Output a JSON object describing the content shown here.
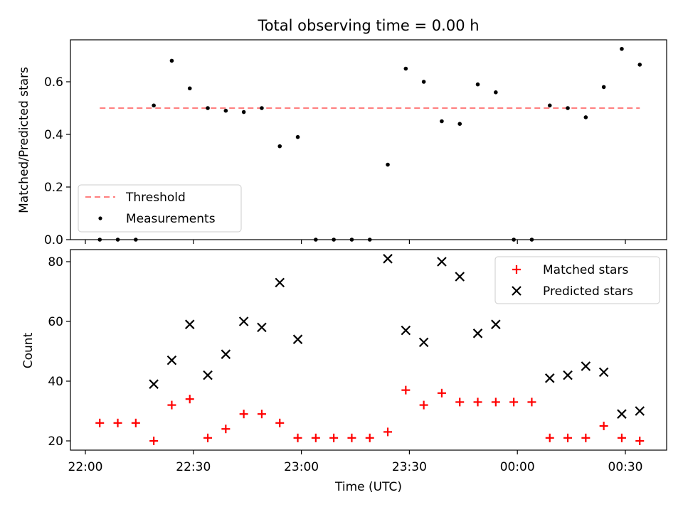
{
  "chart_data": [
    {
      "type": "scatter",
      "title": "Total observing time = 0.00 h",
      "xlabel": "",
      "ylabel": "Matched/Predicted stars",
      "xlim": [
        "21:58",
        "00:41"
      ],
      "ylim": [
        0,
        0.76
      ],
      "yticks": [
        0.0,
        0.2,
        0.4,
        0.6
      ],
      "ytick_labels": [
        "0.0",
        "0.2",
        "0.4",
        "0.6"
      ],
      "legend": "lower-left",
      "threshold": {
        "name": "Threshold",
        "y": 0.5,
        "x_start": "22:04",
        "x_end": "00:34",
        "color": "#ff7f7f"
      },
      "series": [
        {
          "name": "Measurements",
          "color": "#000000",
          "x": [
            "22:04",
            "22:09",
            "22:14",
            "22:19",
            "22:24",
            "22:29",
            "22:34",
            "22:39",
            "22:44",
            "22:49",
            "22:54",
            "22:59",
            "23:04",
            "23:09",
            "23:14",
            "23:19",
            "23:24",
            "23:29",
            "23:34",
            "23:39",
            "23:44",
            "23:49",
            "23:54",
            "23:59",
            "00:04",
            "00:09",
            "00:14",
            "00:19",
            "00:24",
            "00:29",
            "00:34"
          ],
          "y": [
            0,
            0,
            0,
            0.51,
            0.68,
            0.575,
            0.5,
            0.49,
            0.485,
            0.5,
            0.355,
            0.39,
            0,
            0,
            0,
            0,
            0.285,
            0.65,
            0.6,
            0.45,
            0.44,
            0.59,
            0.56,
            0,
            0,
            0.51,
            0.5,
            0.465,
            0.58,
            0.725,
            0.665
          ]
        }
      ]
    },
    {
      "type": "scatter",
      "title": "",
      "xlabel": "Time (UTC)",
      "ylabel": "Count",
      "xlim": [
        "21:58",
        "00:41"
      ],
      "ylim": [
        17.5,
        83.5
      ],
      "yticks": [
        20,
        40,
        60,
        80
      ],
      "ytick_labels": [
        "20",
        "40",
        "60",
        "80"
      ],
      "xticks": [
        "22:00",
        "22:30",
        "23:00",
        "23:30",
        "00:00",
        "00:30"
      ],
      "legend": "top-right",
      "series": [
        {
          "name": "Matched stars",
          "marker": "plus",
          "color": "#ff0000",
          "x": [
            "22:04",
            "22:09",
            "22:14",
            "22:19",
            "22:24",
            "22:29",
            "22:34",
            "22:39",
            "22:44",
            "22:49",
            "22:54",
            "22:59",
            "23:04",
            "23:09",
            "23:14",
            "23:19",
            "23:24",
            "23:29",
            "23:34",
            "23:39",
            "23:44",
            "23:49",
            "23:54",
            "23:59",
            "00:04",
            "00:09",
            "00:14",
            "00:19",
            "00:24",
            "00:29",
            "00:34"
          ],
          "y": [
            26,
            26,
            26,
            20,
            32,
            34,
            21,
            24,
            29,
            29,
            26,
            21,
            21,
            21,
            21,
            21,
            23,
            37,
            32,
            36,
            33,
            33,
            33,
            33,
            33,
            21,
            21,
            21,
            25,
            21,
            20
          ]
        },
        {
          "name": "Predicted stars",
          "marker": "x",
          "color": "#000000",
          "x": [
            "22:19",
            "22:24",
            "22:29",
            "22:34",
            "22:39",
            "22:44",
            "22:49",
            "22:54",
            "22:59",
            "23:24",
            "23:29",
            "23:34",
            "23:39",
            "23:44",
            "23:49",
            "23:54",
            "00:09",
            "00:14",
            "00:19",
            "00:24",
            "00:29",
            "00:34"
          ],
          "y": [
            39,
            47,
            59,
            42,
            49,
            60,
            58,
            73,
            54,
            81,
            57,
            53,
            80,
            75,
            56,
            59,
            41,
            42,
            45,
            43,
            29,
            30
          ]
        }
      ]
    }
  ]
}
